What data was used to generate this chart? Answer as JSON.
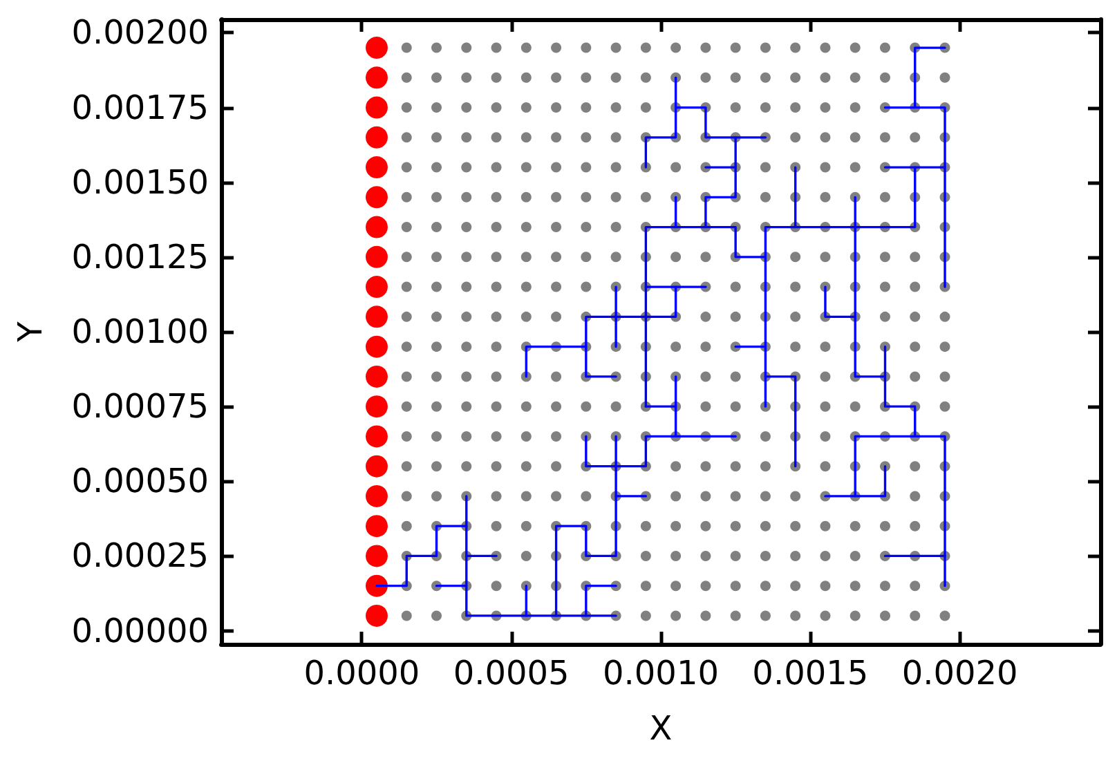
{
  "chart_data": {
    "type": "scatter",
    "xlabel": "X",
    "ylabel": "Y",
    "line_style": "solid",
    "xlim": [
      -0.00047,
      0.00247
    ],
    "ylim": [
      -4.5e-05,
      0.002045
    ],
    "xticks": [
      {
        "value": 0,
        "label": "0.0000"
      },
      {
        "value": 0.0005,
        "label": "0.0005"
      },
      {
        "value": 0.001,
        "label": "0.0010"
      },
      {
        "value": 0.0015,
        "label": "0.0015"
      },
      {
        "value": 0.002,
        "label": "0.0020"
      }
    ],
    "yticks": [
      {
        "value": 0,
        "label": "0.00000"
      },
      {
        "value": 0.00025,
        "label": "0.00025"
      },
      {
        "value": 0.0005,
        "label": "0.00050"
      },
      {
        "value": 0.00075,
        "label": "0.00075"
      },
      {
        "value": 0.001,
        "label": "0.00100"
      },
      {
        "value": 0.00125,
        "label": "0.00125"
      },
      {
        "value": 0.0015,
        "label": "0.00150"
      },
      {
        "value": 0.00175,
        "label": "0.00175"
      },
      {
        "value": 0.002,
        "label": "0.00200"
      }
    ],
    "series": [
      {
        "color": "#808080",
        "marker": "circle",
        "x": [
          0.00015,
          0.00025,
          0.00035,
          0.00045,
          0.00055,
          0.00065,
          0.00075,
          0.00085,
          0.00095,
          0.00105,
          0.00115,
          0.00125,
          0.00135,
          0.00145,
          0.00155,
          0.00165,
          0.00175,
          0.00185,
          0.00195,
          0.00015,
          0.00025,
          0.00035,
          0.00045,
          0.00055,
          0.00065,
          0.00075,
          0.00085,
          0.00095,
          0.00105,
          0.00115,
          0.00125,
          0.00135,
          0.00145,
          0.00155,
          0.00165,
          0.00175,
          0.00185,
          0.00195,
          0.00015,
          0.00025,
          0.00035,
          0.00045,
          0.00055,
          0.00065,
          0.00075,
          0.00085,
          0.00095,
          0.00105,
          0.00115,
          0.00125,
          0.00135,
          0.00145,
          0.00155,
          0.00165,
          0.00175,
          0.00185,
          0.00195,
          0.00015,
          0.00025,
          0.00035,
          0.00045,
          0.00055,
          0.00065,
          0.00075,
          0.00085,
          0.00095,
          0.00105,
          0.00115,
          0.00125,
          0.00135,
          0.00145,
          0.00155,
          0.00165,
          0.00175,
          0.00185,
          0.00195,
          0.00015,
          0.00025,
          0.00035,
          0.00045,
          0.00055,
          0.00065,
          0.00075,
          0.00085,
          0.00095,
          0.00105,
          0.00115,
          0.00125,
          0.00135,
          0.00145,
          0.00155,
          0.00165,
          0.00175,
          0.00185,
          0.00195,
          0.00015,
          0.00025,
          0.00035,
          0.00045,
          0.00055,
          0.00065,
          0.00075,
          0.00085,
          0.00095,
          0.00105,
          0.00115,
          0.00125,
          0.00135,
          0.00145,
          0.00155,
          0.00165,
          0.00175,
          0.00185,
          0.00195,
          0.00015,
          0.00025,
          0.00035,
          0.00045,
          0.00055,
          0.00065,
          0.00075,
          0.00085,
          0.00095,
          0.00105,
          0.00115,
          0.00125,
          0.00135,
          0.00145,
          0.00155,
          0.00165,
          0.00175,
          0.00185,
          0.00195,
          0.00015,
          0.00025,
          0.00035,
          0.00045,
          0.00055,
          0.00065,
          0.00075,
          0.00085,
          0.00095,
          0.00105,
          0.00115,
          0.00125,
          0.00135,
          0.00145,
          0.00155,
          0.00165,
          0.00175,
          0.00185,
          0.00195,
          0.00015,
          0.00025,
          0.00035,
          0.00045,
          0.00055,
          0.00065,
          0.00075,
          0.00085,
          0.00095,
          0.00105,
          0.00115,
          0.00125,
          0.00135,
          0.00145,
          0.00155,
          0.00165,
          0.00175,
          0.00185,
          0.00195,
          0.00015,
          0.00025,
          0.00035,
          0.00045,
          0.00055,
          0.00065,
          0.00075,
          0.00085,
          0.00095,
          0.00105,
          0.00115,
          0.00125,
          0.00135,
          0.00145,
          0.00155,
          0.00165,
          0.00175,
          0.00185,
          0.00195,
          0.00015,
          0.00025,
          0.00035,
          0.00045,
          0.00055,
          0.00065,
          0.00075,
          0.00085,
          0.00095,
          0.00105,
          0.00115,
          0.00125,
          0.00135,
          0.00145,
          0.00155,
          0.00165,
          0.00175,
          0.00185,
          0.00195,
          0.00015,
          0.00025,
          0.00035,
          0.00045,
          0.00055,
          0.00065,
          0.00075,
          0.00085,
          0.00095,
          0.00105,
          0.00115,
          0.00125,
          0.00135,
          0.00145,
          0.00155,
          0.00165,
          0.00175,
          0.00185,
          0.00195,
          0.00015,
          0.00025,
          0.00035,
          0.00045,
          0.00055,
          0.00065,
          0.00075,
          0.00085,
          0.00095,
          0.00105,
          0.00115,
          0.00125,
          0.00135,
          0.00145,
          0.00155,
          0.00165,
          0.00175,
          0.00185,
          0.00195,
          0.00015,
          0.00025,
          0.00035,
          0.00045,
          0.00055,
          0.00065,
          0.00075,
          0.00085,
          0.00095,
          0.00105,
          0.00115,
          0.00125,
          0.00135,
          0.00145,
          0.00155,
          0.00165,
          0.00175,
          0.00185,
          0.00195,
          0.00015,
          0.00025,
          0.00035,
          0.00045,
          0.00055,
          0.00065,
          0.00075,
          0.00085,
          0.00095,
          0.00105,
          0.00115,
          0.00125,
          0.00135,
          0.00145,
          0.00155,
          0.00165,
          0.00175,
          0.00185,
          0.00195,
          0.00015,
          0.00025,
          0.00035,
          0.00045,
          0.00055,
          0.00065,
          0.00075,
          0.00085,
          0.00095,
          0.00105,
          0.00115,
          0.00125,
          0.00135,
          0.00145,
          0.00155,
          0.00165,
          0.00175,
          0.00185,
          0.00195,
          0.00015,
          0.00025,
          0.00035,
          0.00045,
          0.00055,
          0.00065,
          0.00075,
          0.00085,
          0.00095,
          0.00105,
          0.00115,
          0.00125,
          0.00135,
          0.00145,
          0.00155,
          0.00165,
          0.00175,
          0.00185,
          0.00195,
          0.00015,
          0.00025,
          0.00035,
          0.00045,
          0.00055,
          0.00065,
          0.00075,
          0.00085,
          0.00095,
          0.00105,
          0.00115,
          0.00125,
          0.00135,
          0.00145,
          0.00155,
          0.00165,
          0.00175,
          0.00185,
          0.00195,
          0.00015,
          0.00025,
          0.00035,
          0.00045,
          0.00055,
          0.00065,
          0.00075,
          0.00085,
          0.00095,
          0.00105,
          0.00115,
          0.00125,
          0.00135,
          0.00145,
          0.00155,
          0.00165,
          0.00175,
          0.00185,
          0.00195,
          0.00015,
          0.00025,
          0.00035,
          0.00045,
          0.00055,
          0.00065,
          0.00075,
          0.00085,
          0.00095,
          0.00105,
          0.00115,
          0.00125,
          0.00135,
          0.00145,
          0.00155,
          0.00165,
          0.00175,
          0.00185,
          0.00195
        ],
        "values": [
          5e-05,
          5e-05,
          5e-05,
          5e-05,
          5e-05,
          5e-05,
          5e-05,
          5e-05,
          5e-05,
          5e-05,
          5e-05,
          5e-05,
          5e-05,
          5e-05,
          5e-05,
          5e-05,
          5e-05,
          5e-05,
          5e-05,
          0.00015,
          0.00015,
          0.00015,
          0.00015,
          0.00015,
          0.00015,
          0.00015,
          0.00015,
          0.00015,
          0.00015,
          0.00015,
          0.00015,
          0.00015,
          0.00015,
          0.00015,
          0.00015,
          0.00015,
          0.00015,
          0.00015,
          0.00025,
          0.00025,
          0.00025,
          0.00025,
          0.00025,
          0.00025,
          0.00025,
          0.00025,
          0.00025,
          0.00025,
          0.00025,
          0.00025,
          0.00025,
          0.00025,
          0.00025,
          0.00025,
          0.00025,
          0.00025,
          0.00025,
          0.00035,
          0.00035,
          0.00035,
          0.00035,
          0.00035,
          0.00035,
          0.00035,
          0.00035,
          0.00035,
          0.00035,
          0.00035,
          0.00035,
          0.00035,
          0.00035,
          0.00035,
          0.00035,
          0.00035,
          0.00035,
          0.00035,
          0.00045,
          0.00045,
          0.00045,
          0.00045,
          0.00045,
          0.00045,
          0.00045,
          0.00045,
          0.00045,
          0.00045,
          0.00045,
          0.00045,
          0.00045,
          0.00045,
          0.00045,
          0.00045,
          0.00045,
          0.00045,
          0.00045,
          0.00055,
          0.00055,
          0.00055,
          0.00055,
          0.00055,
          0.00055,
          0.00055,
          0.00055,
          0.00055,
          0.00055,
          0.00055,
          0.00055,
          0.00055,
          0.00055,
          0.00055,
          0.00055,
          0.00055,
          0.00055,
          0.00055,
          0.00065,
          0.00065,
          0.00065,
          0.00065,
          0.00065,
          0.00065,
          0.00065,
          0.00065,
          0.00065,
          0.00065,
          0.00065,
          0.00065,
          0.00065,
          0.00065,
          0.00065,
          0.00065,
          0.00065,
          0.00065,
          0.00065,
          0.00075,
          0.00075,
          0.00075,
          0.00075,
          0.00075,
          0.00075,
          0.00075,
          0.00075,
          0.00075,
          0.00075,
          0.00075,
          0.00075,
          0.00075,
          0.00075,
          0.00075,
          0.00075,
          0.00075,
          0.00075,
          0.00075,
          0.00085,
          0.00085,
          0.00085,
          0.00085,
          0.00085,
          0.00085,
          0.00085,
          0.00085,
          0.00085,
          0.00085,
          0.00085,
          0.00085,
          0.00085,
          0.00085,
          0.00085,
          0.00085,
          0.00085,
          0.00085,
          0.00085,
          0.00095,
          0.00095,
          0.00095,
          0.00095,
          0.00095,
          0.00095,
          0.00095,
          0.00095,
          0.00095,
          0.00095,
          0.00095,
          0.00095,
          0.00095,
          0.00095,
          0.00095,
          0.00095,
          0.00095,
          0.00095,
          0.00095,
          0.00105,
          0.00105,
          0.00105,
          0.00105,
          0.00105,
          0.00105,
          0.00105,
          0.00105,
          0.00105,
          0.00105,
          0.00105,
          0.00105,
          0.00105,
          0.00105,
          0.00105,
          0.00105,
          0.00105,
          0.00105,
          0.00105,
          0.00115,
          0.00115,
          0.00115,
          0.00115,
          0.00115,
          0.00115,
          0.00115,
          0.00115,
          0.00115,
          0.00115,
          0.00115,
          0.00115,
          0.00115,
          0.00115,
          0.00115,
          0.00115,
          0.00115,
          0.00115,
          0.00115,
          0.00125,
          0.00125,
          0.00125,
          0.00125,
          0.00125,
          0.00125,
          0.00125,
          0.00125,
          0.00125,
          0.00125,
          0.00125,
          0.00125,
          0.00125,
          0.00125,
          0.00125,
          0.00125,
          0.00125,
          0.00125,
          0.00125,
          0.00135,
          0.00135,
          0.00135,
          0.00135,
          0.00135,
          0.00135,
          0.00135,
          0.00135,
          0.00135,
          0.00135,
          0.00135,
          0.00135,
          0.00135,
          0.00135,
          0.00135,
          0.00135,
          0.00135,
          0.00135,
          0.00135,
          0.00145,
          0.00145,
          0.00145,
          0.00145,
          0.00145,
          0.00145,
          0.00145,
          0.00145,
          0.00145,
          0.00145,
          0.00145,
          0.00145,
          0.00145,
          0.00145,
          0.00145,
          0.00145,
          0.00145,
          0.00145,
          0.00145,
          0.00155,
          0.00155,
          0.00155,
          0.00155,
          0.00155,
          0.00155,
          0.00155,
          0.00155,
          0.00155,
          0.00155,
          0.00155,
          0.00155,
          0.00155,
          0.00155,
          0.00155,
          0.00155,
          0.00155,
          0.00155,
          0.00155,
          0.00165,
          0.00165,
          0.00165,
          0.00165,
          0.00165,
          0.00165,
          0.00165,
          0.00165,
          0.00165,
          0.00165,
          0.00165,
          0.00165,
          0.00165,
          0.00165,
          0.00165,
          0.00165,
          0.00165,
          0.00165,
          0.00165,
          0.00175,
          0.00175,
          0.00175,
          0.00175,
          0.00175,
          0.00175,
          0.00175,
          0.00175,
          0.00175,
          0.00175,
          0.00175,
          0.00175,
          0.00175,
          0.00175,
          0.00175,
          0.00175,
          0.00175,
          0.00175,
          0.00175,
          0.00185,
          0.00185,
          0.00185,
          0.00185,
          0.00185,
          0.00185,
          0.00185,
          0.00185,
          0.00185,
          0.00185,
          0.00185,
          0.00185,
          0.00185,
          0.00185,
          0.00185,
          0.00185,
          0.00185,
          0.00185,
          0.00185,
          0.00195,
          0.00195,
          0.00195,
          0.00195,
          0.00195,
          0.00195,
          0.00195,
          0.00195,
          0.00195,
          0.00195,
          0.00195,
          0.00195,
          0.00195,
          0.00195,
          0.00195,
          0.00195,
          0.00195,
          0.00195,
          0.00195
        ]
      },
      {
        "color": "#ff0000",
        "marker": "circle",
        "x": [
          5e-05,
          5e-05,
          5e-05,
          5e-05,
          5e-05,
          5e-05,
          5e-05,
          5e-05,
          5e-05,
          5e-05,
          5e-05,
          5e-05,
          5e-05,
          5e-05,
          5e-05,
          5e-05,
          5e-05,
          5e-05,
          5e-05,
          5e-05
        ],
        "values": [
          5e-05,
          0.00015,
          0.00025,
          0.00035,
          0.00045,
          0.00055,
          0.00065,
          0.00075,
          0.00085,
          0.00095,
          0.00105,
          0.00115,
          0.00125,
          0.00135,
          0.00145,
          0.00155,
          0.00165,
          0.00175,
          0.00185,
          0.00195
        ]
      },
      {
        "type": "line",
        "color": "#0000ff",
        "x": [
          5e-05,
          0.00015,
          0.00015,
          0.00025,
          0.00025,
          0.00035
        ],
        "values": [
          0.00015,
          0.00015,
          0.00025,
          0.00025,
          0.00035,
          0.00035
        ]
      },
      {
        "type": "line",
        "color": "#0000ff",
        "x": [
          0.00035,
          0.00035,
          0.00085
        ],
        "values": [
          0.00045,
          5e-05,
          5e-05
        ]
      },
      {
        "type": "line",
        "color": "#0000ff",
        "x": [
          0.00025,
          0.00035
        ],
        "values": [
          0.00015,
          0.00015
        ]
      },
      {
        "type": "line",
        "color": "#0000ff",
        "x": [
          0.00035,
          0.00045
        ],
        "values": [
          0.00025,
          0.00025
        ]
      },
      {
        "type": "line",
        "color": "#0000ff",
        "x": [
          0.00055,
          0.00055
        ],
        "values": [
          0.00015,
          5e-05
        ]
      },
      {
        "type": "line",
        "color": "#0000ff",
        "x": [
          0.00065,
          0.00065,
          0.00075,
          0.00075,
          0.00085,
          0.00085
        ],
        "values": [
          5e-05,
          0.00035,
          0.00035,
          0.00025,
          0.00025,
          0.00065
        ]
      },
      {
        "type": "line",
        "color": "#0000ff",
        "x": [
          0.00085,
          0.00095
        ],
        "values": [
          0.00045,
          0.00045
        ]
      },
      {
        "type": "line",
        "color": "#0000ff",
        "x": [
          0.00085,
          0.00075,
          0.00075
        ],
        "values": [
          0.00015,
          0.00015,
          5e-05
        ]
      },
      {
        "type": "line",
        "color": "#0000ff",
        "x": [
          0.00075,
          0.00075,
          0.00095,
          0.00095,
          0.00125
        ],
        "values": [
          0.00065,
          0.00055,
          0.00055,
          0.00065,
          0.00065
        ]
      },
      {
        "type": "line",
        "color": "#0000ff",
        "x": [
          0.00105,
          0.00105
        ],
        "values": [
          0.00065,
          0.00085
        ]
      },
      {
        "type": "line",
        "color": "#0000ff",
        "x": [
          0.00095,
          0.00105
        ],
        "values": [
          0.00075,
          0.00075
        ]
      },
      {
        "type": "line",
        "color": "#0000ff",
        "x": [
          0.00095,
          0.00095,
          0.00125,
          0.00125,
          0.00135
        ],
        "values": [
          0.00075,
          0.00135,
          0.00135,
          0.00125,
          0.00125
        ]
      },
      {
        "type": "line",
        "color": "#0000ff",
        "x": [
          0.00055,
          0.00055,
          0.00075
        ],
        "values": [
          0.00085,
          0.00095,
          0.00095
        ]
      },
      {
        "type": "line",
        "color": "#0000ff",
        "x": [
          0.00085,
          0.00075,
          0.00075,
          0.00105,
          0.00105
        ],
        "values": [
          0.00085,
          0.00085,
          0.00105,
          0.00105,
          0.00115
        ]
      },
      {
        "type": "line",
        "color": "#0000ff",
        "x": [
          0.00085,
          0.00085
        ],
        "values": [
          0.00095,
          0.00115
        ]
      },
      {
        "type": "line",
        "color": "#0000ff",
        "x": [
          0.00095,
          0.00115
        ],
        "values": [
          0.00115,
          0.00115
        ]
      },
      {
        "type": "line",
        "color": "#0000ff",
        "x": [
          0.00095,
          0.00095,
          0.00105,
          0.00105
        ],
        "values": [
          0.00155,
          0.00165,
          0.00165,
          0.00185
        ]
      },
      {
        "type": "line",
        "color": "#0000ff",
        "x": [
          0.00105,
          0.00115,
          0.00115,
          0.00135
        ],
        "values": [
          0.00175,
          0.00175,
          0.00165,
          0.00165
        ]
      },
      {
        "type": "line",
        "color": "#0000ff",
        "x": [
          0.00125,
          0.00125,
          0.00115,
          0.00115
        ],
        "values": [
          0.00165,
          0.00145,
          0.00145,
          0.00135
        ]
      },
      {
        "type": "line",
        "color": "#0000ff",
        "x": [
          0.00115,
          0.00125
        ],
        "values": [
          0.00155,
          0.00155
        ]
      },
      {
        "type": "line",
        "color": "#0000ff",
        "x": [
          0.00105,
          0.00105
        ],
        "values": [
          0.00145,
          0.00135
        ]
      },
      {
        "type": "line",
        "color": "#0000ff",
        "x": [
          0.00125,
          0.00135
        ],
        "values": [
          0.00095,
          0.00095
        ]
      },
      {
        "type": "line",
        "color": "#0000ff",
        "x": [
          0.00135,
          0.00135,
          0.00185,
          0.00185
        ],
        "values": [
          0.00075,
          0.00135,
          0.00135,
          0.00155
        ]
      },
      {
        "type": "line",
        "color": "#0000ff",
        "x": [
          0.00135,
          0.00145,
          0.00145
        ],
        "values": [
          0.00085,
          0.00085,
          0.00055
        ]
      },
      {
        "type": "line",
        "color": "#0000ff",
        "x": [
          0.00145,
          0.00145
        ],
        "values": [
          0.00135,
          0.00155
        ]
      },
      {
        "type": "line",
        "color": "#0000ff",
        "x": [
          0.00175,
          0.00165,
          0.00165
        ],
        "values": [
          0.00085,
          0.00085,
          0.00145
        ]
      },
      {
        "type": "line",
        "color": "#0000ff",
        "x": [
          0.00155,
          0.00155,
          0.00165
        ],
        "values": [
          0.00115,
          0.00105,
          0.00105
        ]
      },
      {
        "type": "line",
        "color": "#0000ff",
        "x": [
          0.00175,
          0.00175,
          0.00185,
          0.00185
        ],
        "values": [
          0.00095,
          0.00075,
          0.00075,
          0.00065
        ]
      },
      {
        "type": "line",
        "color": "#0000ff",
        "x": [
          0.00165,
          0.00165,
          0.00195,
          0.00195
        ],
        "values": [
          0.00045,
          0.00065,
          0.00065,
          0.00015
        ]
      },
      {
        "type": "line",
        "color": "#0000ff",
        "x": [
          0.00155,
          0.00175,
          0.00175
        ],
        "values": [
          0.00045,
          0.00045,
          0.00055
        ]
      },
      {
        "type": "line",
        "color": "#0000ff",
        "x": [
          0.00175,
          0.00195
        ],
        "values": [
          0.00025,
          0.00025
        ]
      },
      {
        "type": "line",
        "color": "#0000ff",
        "x": [
          0.00195,
          0.00185,
          0.00185
        ],
        "values": [
          0.00195,
          0.00195,
          0.00175
        ]
      },
      {
        "type": "line",
        "color": "#0000ff",
        "x": [
          0.00175,
          0.00195,
          0.00195
        ],
        "values": [
          0.00175,
          0.00175,
          0.00115
        ]
      },
      {
        "type": "line",
        "color": "#0000ff",
        "x": [
          0.00175,
          0.00195
        ],
        "values": [
          0.00155,
          0.00155
        ]
      }
    ]
  }
}
